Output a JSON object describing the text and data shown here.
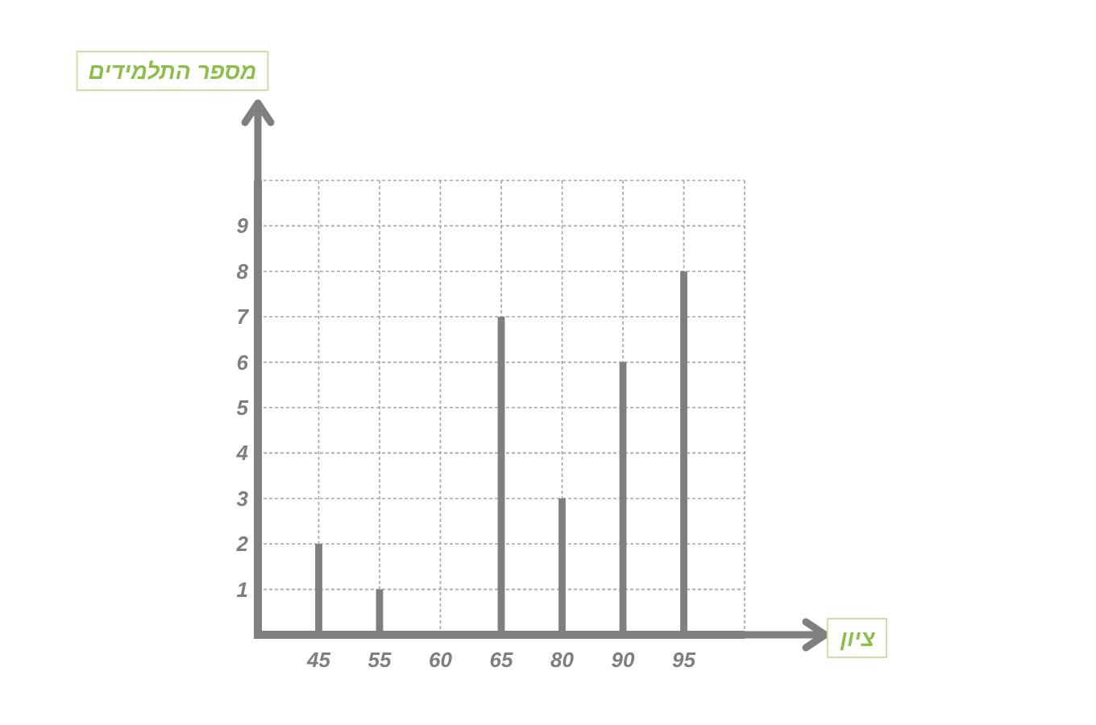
{
  "chart_data": {
    "type": "bar",
    "xlabel": "ציון",
    "ylabel": "מספר התלמידים",
    "categories": [
      "45",
      "55",
      "60",
      "65",
      "80",
      "90",
      "95"
    ],
    "values": [
      2,
      1,
      0,
      7,
      3,
      6,
      8
    ],
    "color": "#7f7f7f",
    "ylim": [
      0,
      10
    ],
    "yticks": [
      {
        "value": 0,
        "label": null
      },
      1,
      2,
      3,
      4,
      5,
      6,
      7,
      8,
      9,
      {
        "value": 10,
        "label": null
      }
    ],
    "grid": true
  }
}
